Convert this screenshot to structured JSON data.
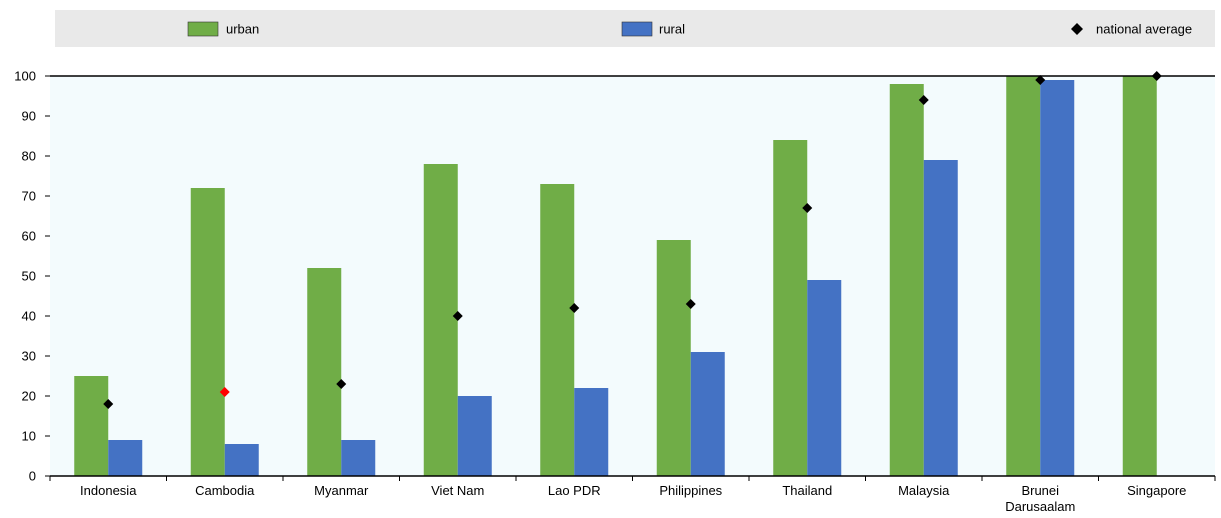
{
  "chart_data": {
    "type": "bar",
    "title": "",
    "xlabel": "",
    "ylabel": "",
    "ylim": [
      0,
      100
    ],
    "yticks": [
      0,
      10,
      20,
      30,
      40,
      50,
      60,
      70,
      80,
      90,
      100
    ],
    "grid": false,
    "legend_position": "top",
    "categories": [
      [
        "Indonesia"
      ],
      [
        "Cambodia"
      ],
      [
        "Myanmar"
      ],
      [
        "Viet Nam"
      ],
      [
        "Lao PDR"
      ],
      [
        "Philippines"
      ],
      [
        "Thailand"
      ],
      [
        "Malaysia"
      ],
      [
        "Brunei",
        "Darusaalam"
      ],
      [
        "Singapore"
      ]
    ],
    "series": [
      {
        "name": "urban",
        "kind": "bar",
        "color": "#70ad47",
        "values": [
          25,
          72,
          52,
          78,
          73,
          59,
          84,
          98,
          100,
          100
        ]
      },
      {
        "name": "rural",
        "kind": "bar",
        "color": "#4472c4",
        "values": [
          9,
          8,
          9,
          20,
          22,
          31,
          49,
          79,
          99,
          null
        ]
      },
      {
        "name": "national average",
        "kind": "marker",
        "color": "#000000",
        "highlight_color": "#ff0000",
        "highlight_index": 1,
        "values": [
          18,
          21,
          23,
          40,
          42,
          43,
          67,
          94,
          99,
          100
        ]
      }
    ]
  }
}
